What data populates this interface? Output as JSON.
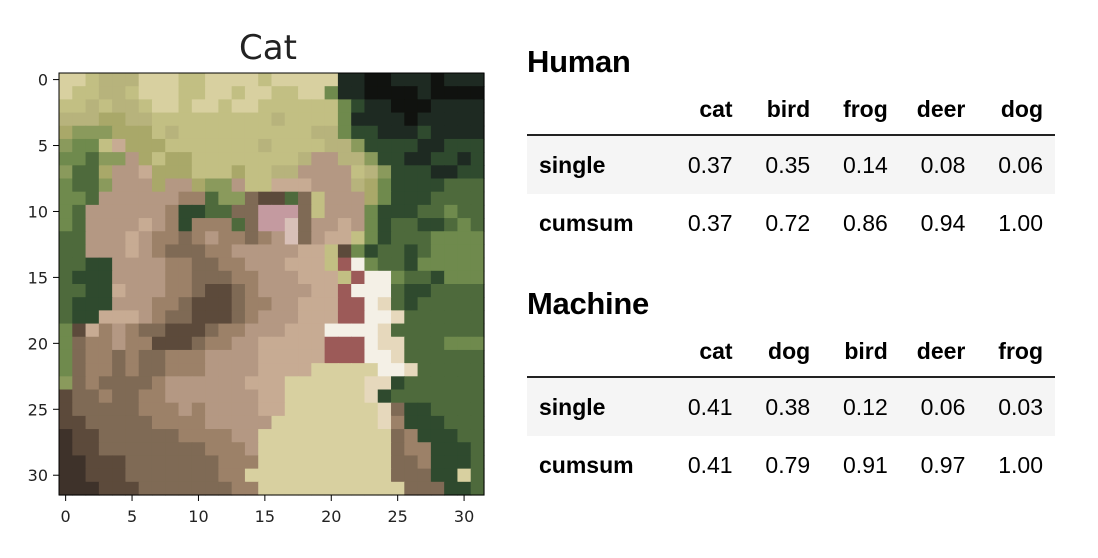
{
  "chart_data": {
    "type": "heatmap",
    "title": "Cat",
    "x_ticks": [
      "0",
      "5",
      "10",
      "15",
      "20",
      "25",
      "30"
    ],
    "y_ticks": [
      "0",
      "5",
      "10",
      "15",
      "20",
      "25",
      "30"
    ],
    "xlim": [
      -0.5,
      31.5
    ],
    "ylim": [
      31.5,
      -0.5
    ],
    "palette": [
      "#d8d0a0",
      "#c2bf83",
      "#b7b37c",
      "#a9a869",
      "#8a9a5c",
      "#6f8a4d",
      "#4e6a3c",
      "#2f4a2e",
      "#1e2a22",
      "#10120f",
      "#c7ab93",
      "#b49883",
      "#9c8168",
      "#7f6a55",
      "#5c4a3b",
      "#3e322a",
      "#d8c0b8",
      "#c49aa0",
      "#9c5a58",
      "#f4f0e6",
      "#e6d8bc",
      "#d0b590",
      "#b8946c",
      "#a07a58",
      "#4f8a3a",
      "#6a7f5e"
    ],
    "pixels": [
      "0012220001100001000008899888988",
      "0112210001100100110058899998999",
      "1121221001001001111115788999888",
      "2223322111111111211115888898888",
      "3444333121111111111225778887888",
      "4551a333111111121111224777788777",
      "55644b3133111111112bb224778877877",
      "4663bba33311131122bbbb1247778877",
      "5664bbb3bb344b11aaabbb2357777666",
      "556bbbbbbcc644dee6d1bbb357776666",
      "56bbbbbbc7766ddhhhd1bbb57776656",
      "56bbbbabc7ccc6dhhgdbbab576677656",
      "66bbbabccdcbccdcbgdbaa157666555",
      "66bbbabcdddccbbbbbaa1e57667655",
      "6677bbbbccddccbbbaaa1ij5667555",
      "6777bbbbccdddccbbbaaa1ijj566755",
      "6677abbbccdeedcbbbbaaijjj67766",
      "6777bbbccdeeedccbbaaaiijk676666",
      "677aaabcddeeedcbbbaaaiijjk66666",
      "5eacbcddeeedccbbbaaajjjjk6666",
      "5dccbcceeedccbbaaaaaiiijkk6665",
      "5dccdcddcccbbbbaaaaaiiijjk6666",
      "5dccdcddcccbbbbaaaawwvvvjjk666",
      "4dcddddcbbbbbbaaavvvvvvkk7666",
      "eddcddccbbbbbbbaavvvvvvk7666",
      "edddddcccbcbbbbaavvvvvwvkd7766",
      "eedddddccccbbbbbvvvwwwvvkc7776",
      "feeddddddccccbbvvvvwwwvvvdc7776",
      "feeddddddddcccbvvvvwwwwvvdcc7776",
      "ffeeedddddddcccvvvwwwwvvvddc7776",
      "ffeeedddddddccvvvwwwwwvvvddd7706",
      "fffeeedddddddccvvvwwwwwvvvddd776"
    ]
  },
  "tables": [
    {
      "heading": "Human",
      "columns": [
        "cat",
        "bird",
        "frog",
        "deer",
        "dog"
      ],
      "rows": [
        {
          "label": "single",
          "values": [
            "0.37",
            "0.35",
            "0.14",
            "0.08",
            "0.06"
          ]
        },
        {
          "label": "cumsum",
          "values": [
            "0.37",
            "0.72",
            "0.86",
            "0.94",
            "1.00"
          ]
        }
      ]
    },
    {
      "heading": "Machine",
      "columns": [
        "cat",
        "dog",
        "bird",
        "deer",
        "frog"
      ],
      "rows": [
        {
          "label": "single",
          "values": [
            "0.41",
            "0.38",
            "0.12",
            "0.06",
            "0.03"
          ]
        },
        {
          "label": "cumsum",
          "values": [
            "0.41",
            "0.79",
            "0.91",
            "0.97",
            "1.00"
          ]
        }
      ]
    }
  ]
}
